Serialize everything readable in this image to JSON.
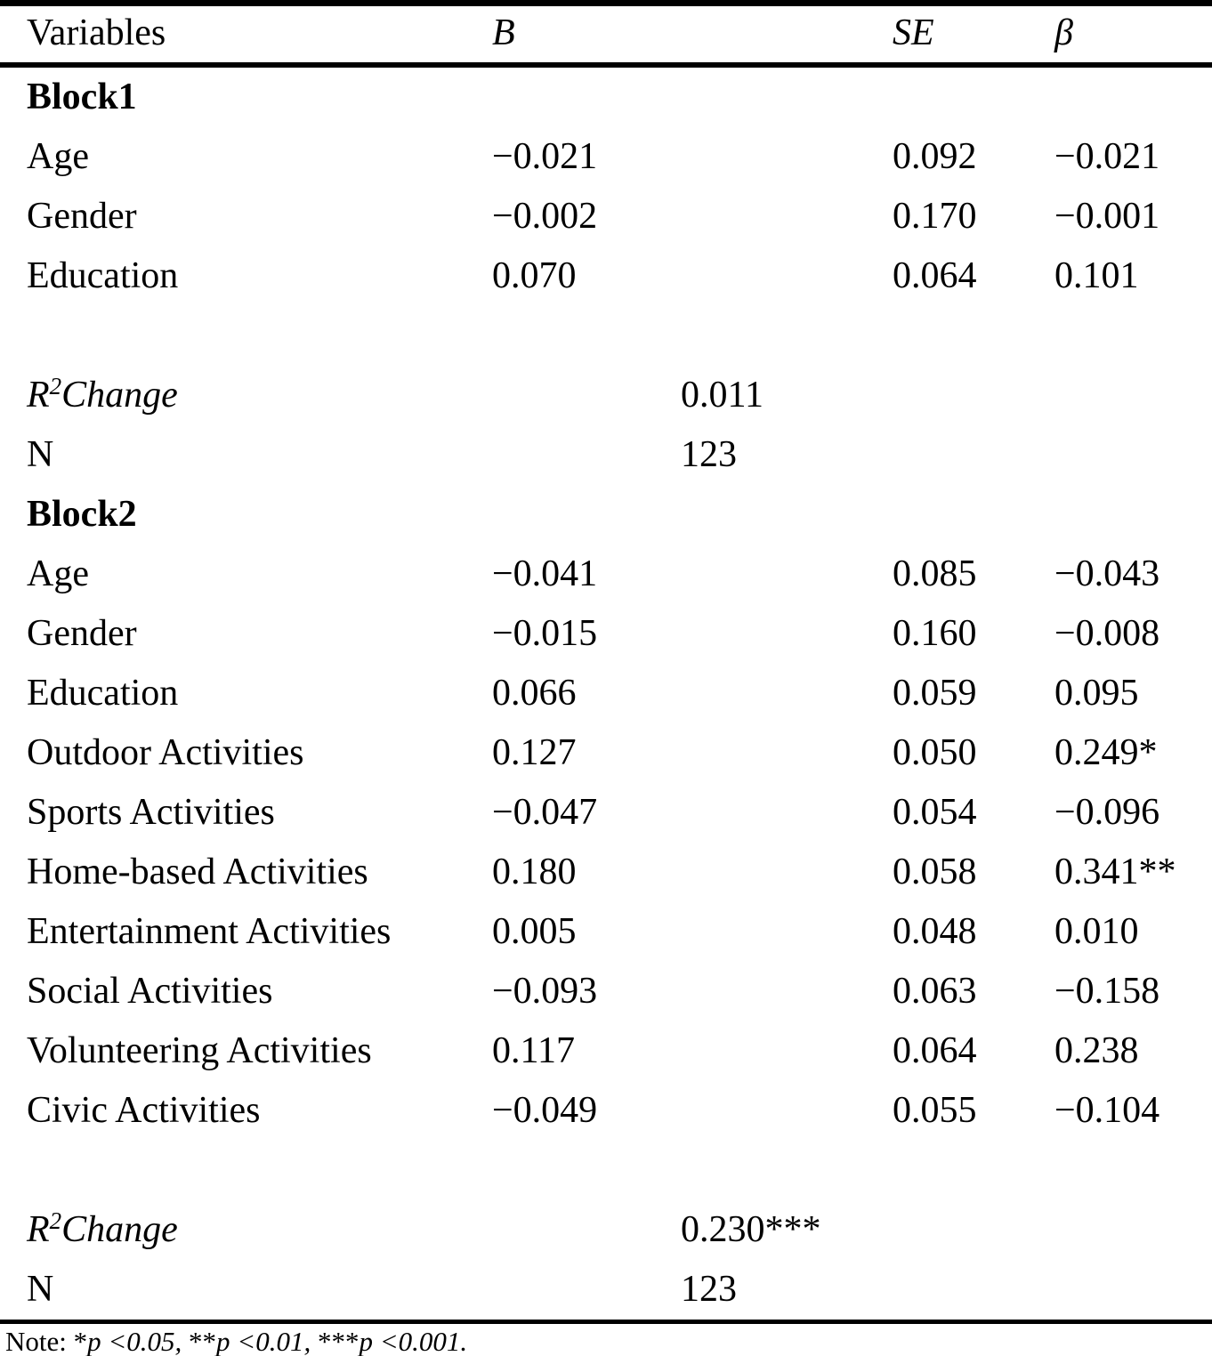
{
  "table": {
    "columns": {
      "variables": "Variables",
      "b": "B",
      "se": "SE",
      "beta": "β"
    },
    "block1": {
      "title": "Block1",
      "rows": [
        {
          "label": "Age",
          "b": "−0.021",
          "se": "0.092",
          "beta": "−0.021"
        },
        {
          "label": "Gender",
          "b": "−0.002",
          "se": "0.170",
          "beta": "−0.001"
        },
        {
          "label": "Education",
          "b": "0.070",
          "se": "0.064",
          "beta": "0.101"
        }
      ],
      "r2": {
        "prefix": "R",
        "sup": "2",
        "suffix": "Change",
        "value": "0.011"
      },
      "n": {
        "label": "N",
        "value": "123"
      }
    },
    "block2": {
      "title": "Block2",
      "rows": [
        {
          "label": "Age",
          "b": "−0.041",
          "se": "0.085",
          "beta": "−0.043"
        },
        {
          "label": "Gender",
          "b": "−0.015",
          "se": "0.160",
          "beta": "−0.008"
        },
        {
          "label": "Education",
          "b": "0.066",
          "se": "0.059",
          "beta": "0.095"
        },
        {
          "label": "Outdoor Activities",
          "b": "0.127",
          "se": "0.050",
          "beta": "0.249*"
        },
        {
          "label": "Sports Activities",
          "b": "−0.047",
          "se": "0.054",
          "beta": "−0.096"
        },
        {
          "label": "Home-based Activities",
          "b": "0.180",
          "se": "0.058",
          "beta": "0.341**"
        },
        {
          "label": "Entertainment Activities",
          "b": "0.005",
          "se": "0.048",
          "beta": "0.010"
        },
        {
          "label": "Social Activities",
          "b": "−0.093",
          "se": "0.063",
          "beta": "−0.158"
        },
        {
          "label": "Volunteering Activities",
          "b": "0.117",
          "se": "0.064",
          "beta": "0.238"
        },
        {
          "label": "Civic Activities",
          "b": "−0.049",
          "se": "0.055",
          "beta": "−0.104"
        }
      ],
      "r2": {
        "prefix": "R",
        "sup": "2",
        "suffix": "Change",
        "value": "0.230***"
      },
      "n": {
        "label": "N",
        "value": "123"
      }
    },
    "note": {
      "parts": [
        {
          "text": "Note: "
        },
        {
          "text": "*"
        },
        {
          "text": "p"
        },
        {
          "text": " <0.05, "
        },
        {
          "text": "**"
        },
        {
          "text": "p"
        },
        {
          "text": " <0.01, "
        },
        {
          "text": "***"
        },
        {
          "text": "p"
        },
        {
          "text": " <0.001."
        }
      ]
    }
  }
}
